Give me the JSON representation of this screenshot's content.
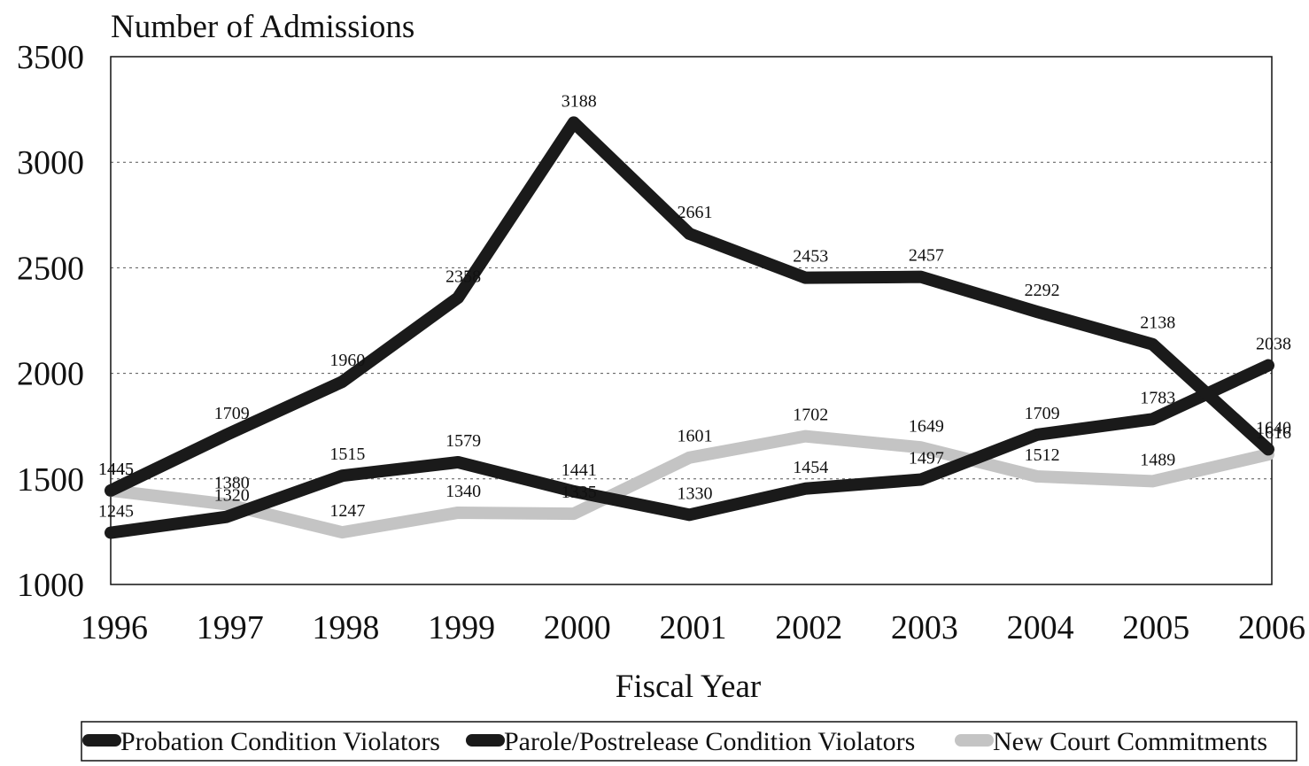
{
  "chart_data": {
    "type": "line",
    "title": "",
    "ylabel": "Number of Admissions",
    "xlabel": "Fiscal Year",
    "x": [
      "1996",
      "1997",
      "1998",
      "1999",
      "2000",
      "2001",
      "2002",
      "2003",
      "2004",
      "2005",
      "2006"
    ],
    "y_ticks": [
      "1000",
      "1500",
      "2000",
      "2500",
      "3000",
      "3500"
    ],
    "ylim": [
      1000,
      3500
    ],
    "grid": "horizontal dotted",
    "legend_position": "bottom",
    "series": [
      {
        "name": "Probation Condition Violators",
        "color": "#1a1a1a",
        "values": [
          1445,
          1709,
          1960,
          2358,
          3188,
          2661,
          2453,
          2457,
          2292,
          2138,
          1640
        ],
        "labels": [
          "1445",
          "1709",
          "1960",
          "2358",
          "3188",
          "2661",
          "2453",
          "2457",
          "2292",
          "2138",
          "1640"
        ]
      },
      {
        "name": "Parole/Postrelease Condition Violators",
        "color": "#1a1a1a",
        "values": [
          1245,
          1320,
          1515,
          1579,
          1441,
          1330,
          1454,
          1497,
          1709,
          1783,
          2038
        ],
        "labels": [
          "1245",
          "1320",
          "1515",
          "1579",
          "1441",
          "1330",
          "1454",
          "1497",
          "1709",
          "1783",
          "2038"
        ]
      },
      {
        "name": "New Court Commitments",
        "color": "#c4c4c4",
        "values": [
          1445,
          1380,
          1247,
          1340,
          1335,
          1601,
          1702,
          1649,
          1512,
          1489,
          1616
        ],
        "labels": [
          "1445",
          "1380",
          "1247",
          "1340",
          "1335",
          "1601",
          "1702",
          "1649",
          "1512",
          "1489",
          "1616"
        ]
      }
    ]
  }
}
